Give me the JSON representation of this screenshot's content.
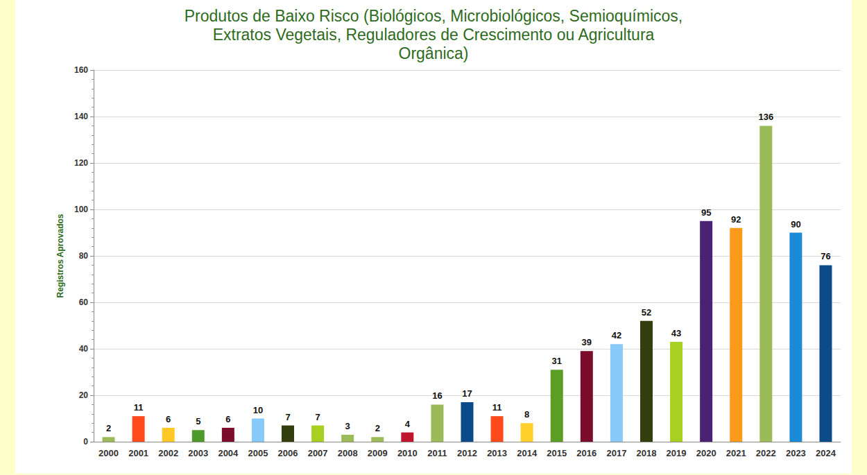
{
  "chart_data": {
    "type": "bar",
    "title": "Produtos de Baixo Risco (Biológicos, Microbiológicos, Semioquímicos,\nExtratos Vegetais, Reguladores de Crescimento ou Agricultura\nOrgânica)",
    "y_label": "Registros Aprovados",
    "categories": [
      "2000",
      "2001",
      "2002",
      "2003",
      "2004",
      "2005",
      "2006",
      "2007",
      "2008",
      "2009",
      "2010",
      "2011",
      "2012",
      "2013",
      "2014",
      "2015",
      "2016",
      "2017",
      "2018",
      "2019",
      "2020",
      "2021",
      "2022",
      "2023",
      "2024"
    ],
    "values": [
      2,
      11,
      6,
      5,
      6,
      10,
      7,
      7,
      3,
      2,
      4,
      16,
      17,
      11,
      8,
      31,
      39,
      42,
      52,
      43,
      95,
      92,
      136,
      90,
      76
    ],
    "colors": [
      "#9bbb59",
      "#ff4a1c",
      "#ffc825",
      "#4e9a2b",
      "#7b0c2c",
      "#87c9f8",
      "#333f0f",
      "#a8d020",
      "#9bbb59",
      "#9bbb59",
      "#c0152e",
      "#9bbb59",
      "#0d4a8a",
      "#ff4a1c",
      "#ffd02b",
      "#5a9e23",
      "#7b0c2c",
      "#87c9f8",
      "#333f0f",
      "#a8d020",
      "#4b2272",
      "#fb9a1b",
      "#9bbb59",
      "#1b8bd8",
      "#0d4a8a"
    ],
    "ylim": [
      0,
      160
    ],
    "yticks": [
      0,
      20,
      40,
      60,
      80,
      100,
      120,
      140,
      160
    ],
    "grid": true,
    "data_labels": true
  }
}
